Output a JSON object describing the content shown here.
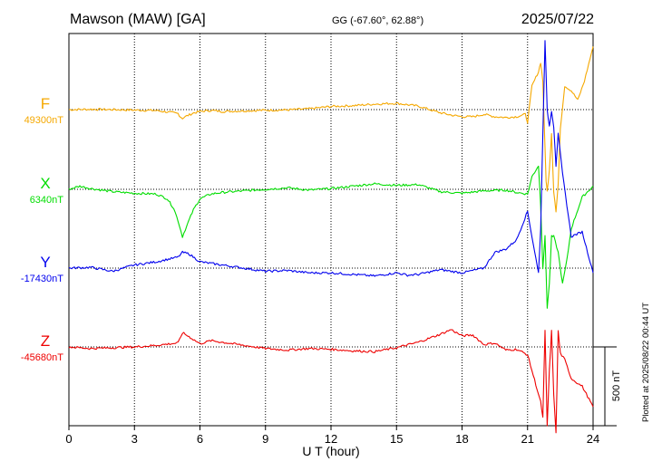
{
  "header": {
    "station": "Mawson (MAW)  [GA]",
    "coords": "GG (-67.60°,  62.88°)",
    "date": "2025/07/22"
  },
  "footer": {
    "plotted": "Plotted at 2025/08/22 00:44 UT"
  },
  "chart_data": {
    "type": "line",
    "title": "Mawson (MAW)  [GA]",
    "xlabel": "U T (hour)",
    "ylabel": "",
    "xlim": [
      0,
      24
    ],
    "xticks": [
      "0",
      "3",
      "6",
      "9",
      "12",
      "15",
      "18",
      "21",
      "24"
    ],
    "grid": true,
    "scale_bar": {
      "value": 500,
      "label": "500 nT"
    },
    "colors": {
      "F": "#f5a800",
      "X": "#00dd00",
      "Y": "#0000ee",
      "Z": "#ee0000"
    },
    "series": [
      {
        "name": "F",
        "baseline_label": "49300nT",
        "baseline_nT": 49300,
        "x": [
          0,
          1,
          2,
          3,
          4,
          4.5,
          5,
          5.1,
          5.2,
          5.4,
          5.7,
          6,
          6.5,
          7,
          8,
          9,
          10,
          11,
          12,
          13,
          14,
          15,
          16,
          17,
          17.5,
          18,
          18.5,
          19,
          19.5,
          20,
          20.5,
          20.9,
          21,
          21.2,
          21.5,
          21.6,
          21.7,
          21.8,
          21.85,
          21.9,
          22,
          22.1,
          22.2,
          22.3,
          22.4,
          22.5,
          22.7,
          23,
          23.3,
          23.6,
          24
        ],
        "y": [
          0,
          2,
          0,
          -3,
          -6,
          -15,
          -25,
          -45,
          -55,
          -40,
          -22,
          -12,
          -5,
          -12,
          -8,
          -4,
          -2,
          5,
          20,
          25,
          35,
          40,
          22,
          -20,
          -35,
          -45,
          -45,
          -30,
          -45,
          -50,
          -45,
          -30,
          -80,
          150,
          240,
          300,
          180,
          -250,
          -450,
          -520,
          -380,
          -150,
          -520,
          -650,
          -480,
          -120,
          150,
          120,
          60,
          180,
          400
        ]
      },
      {
        "name": "X",
        "baseline_label": "6340nT",
        "baseline_nT": 6340,
        "x": [
          0,
          0.5,
          1,
          2,
          3,
          4,
          4.5,
          4.8,
          5,
          5.2,
          5.4,
          5.7,
          6,
          6.5,
          7,
          8,
          9,
          10,
          11,
          12,
          13,
          14,
          15,
          16,
          17,
          18,
          19,
          20,
          20.5,
          21,
          21.2,
          21.5,
          21.6,
          21.7,
          21.8,
          21.9,
          22,
          22.1,
          22.2,
          22.4,
          22.6,
          22.8,
          23,
          23.5,
          24
        ],
        "y": [
          0,
          20,
          5,
          -15,
          -25,
          -30,
          -60,
          -120,
          -200,
          -300,
          -230,
          -130,
          -60,
          -30,
          -20,
          -10,
          0,
          10,
          -5,
          5,
          20,
          35,
          25,
          30,
          -15,
          -25,
          -10,
          -5,
          -20,
          -30,
          80,
          150,
          -100,
          -500,
          -300,
          -750,
          -600,
          -300,
          -300,
          -400,
          -600,
          -450,
          -250,
          -50,
          20
        ]
      },
      {
        "name": "Y",
        "baseline_label": "-17430nT",
        "baseline_nT": -17430,
        "x": [
          0,
          1,
          2,
          3,
          4,
          5,
          5.2,
          5.5,
          6,
          7,
          8,
          9,
          10,
          11,
          12,
          13,
          14,
          15,
          15.5,
          16,
          17,
          18,
          19,
          19.5,
          20,
          20.5,
          21,
          21.2,
          21.5,
          21.6,
          21.8,
          21.9,
          22,
          22.1,
          22.2,
          22.3,
          22.4,
          22.6,
          23,
          23.5,
          24
        ],
        "y": [
          0,
          5,
          -20,
          20,
          40,
          70,
          100,
          90,
          40,
          20,
          0,
          -20,
          -15,
          -30,
          -30,
          -40,
          -50,
          -30,
          -45,
          -40,
          -10,
          -30,
          0,
          100,
          120,
          180,
          360,
          200,
          -30,
          250,
          1450,
          1000,
          900,
          1000,
          900,
          650,
          850,
          600,
          200,
          230,
          -30
        ]
      },
      {
        "name": "Z",
        "baseline_label": "-45680nT",
        "baseline_nT": -45680,
        "x": [
          0,
          1,
          2,
          3,
          4,
          5,
          5.2,
          5.5,
          6,
          6.5,
          7,
          8,
          9,
          10,
          11,
          12,
          13,
          14,
          15,
          16,
          17,
          17.5,
          18,
          18.5,
          19,
          19.5,
          20,
          20.5,
          21,
          21.2,
          21.5,
          21.6,
          21.7,
          21.8,
          21.9,
          22,
          22.1,
          22.2,
          22.3,
          22.4,
          22.5,
          22.7,
          23,
          23.5,
          24
        ],
        "y": [
          0,
          -10,
          -5,
          0,
          10,
          25,
          90,
          65,
          20,
          40,
          30,
          10,
          -10,
          -20,
          -10,
          -15,
          -25,
          -30,
          -5,
          30,
          80,
          110,
          70,
          75,
          15,
          25,
          -20,
          -15,
          -50,
          -150,
          -300,
          -350,
          -450,
          100,
          -500,
          -150,
          100,
          -300,
          -550,
          100,
          -40,
          -80,
          -200,
          -250,
          -380
        ]
      }
    ]
  }
}
